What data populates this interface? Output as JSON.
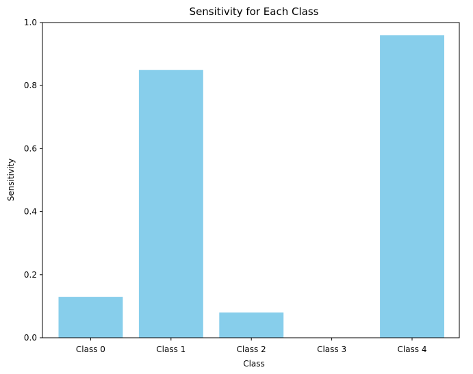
{
  "chart_data": {
    "type": "bar",
    "title": "Sensitivity for Each Class",
    "xlabel": "Class",
    "ylabel": "Sensitivity",
    "categories": [
      "Class 0",
      "Class 1",
      "Class 2",
      "Class 3",
      "Class 4"
    ],
    "values": [
      0.13,
      0.85,
      0.08,
      0.0,
      0.96
    ],
    "ylim": [
      0,
      1.0
    ],
    "yticks": [
      "0.0",
      "0.2",
      "0.4",
      "0.6",
      "0.8",
      "1.0"
    ],
    "grid": false,
    "bar_color": "#87ceeb"
  }
}
